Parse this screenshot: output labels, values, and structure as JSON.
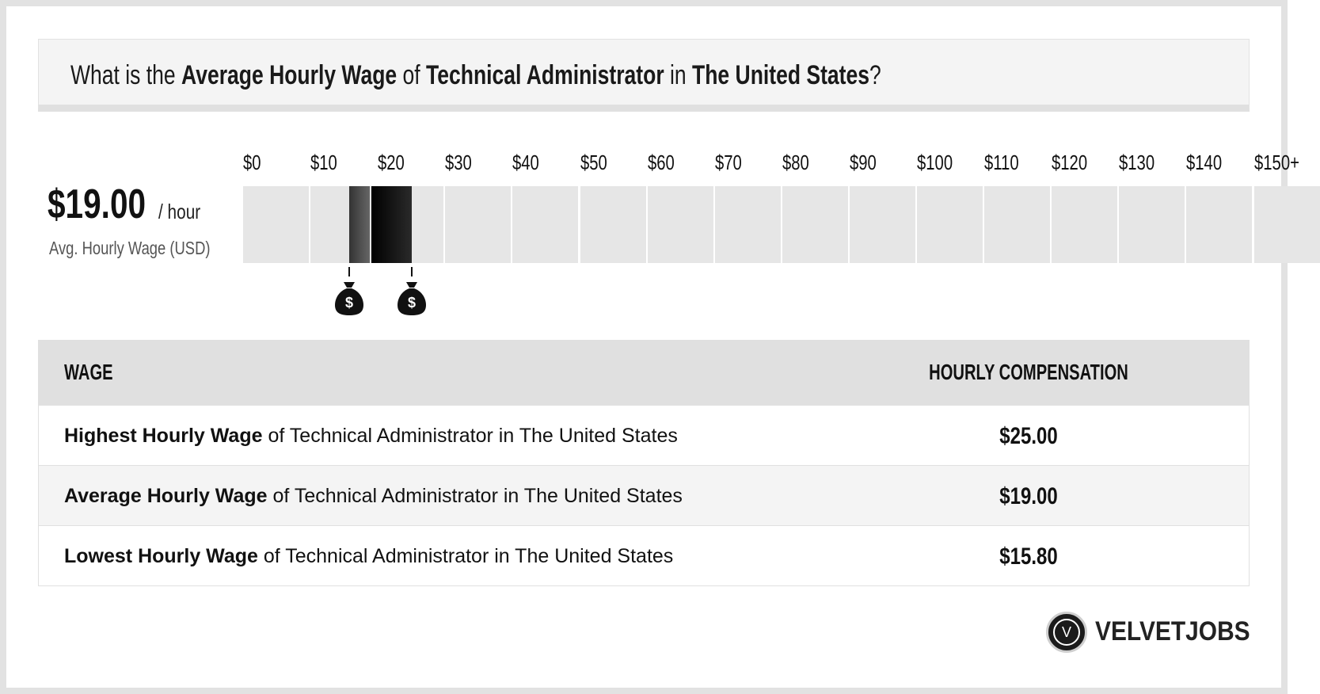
{
  "header": {
    "title_parts": [
      {
        "text": "What is the ",
        "bold": false
      },
      {
        "text": "Average Hourly Wage",
        "bold": true
      },
      {
        "text": " of ",
        "bold": false
      },
      {
        "text": "Technical Administrator",
        "bold": true
      },
      {
        "text": " in ",
        "bold": false
      },
      {
        "text": "The United States",
        "bold": true
      },
      {
        "text": "?",
        "bold": false
      }
    ]
  },
  "summary": {
    "value": "$19.00",
    "unit": "/ hour",
    "label": "Avg. Hourly Wage (USD)"
  },
  "chart_data": {
    "type": "bar",
    "title": "",
    "x_ticks": [
      "$0",
      "$10",
      "$20",
      "$30",
      "$40",
      "$50",
      "$60",
      "$70",
      "$80",
      "$90",
      "$100",
      "$110",
      "$120",
      "$130",
      "$140",
      "$150+"
    ],
    "x_range": [
      0,
      160
    ],
    "x_unit": "USD per hour",
    "range": {
      "low": 15.8,
      "average": 19.0,
      "high": 25.0
    },
    "markers": [
      15.8,
      25.0
    ],
    "colors": {
      "empty": "#e6e6e6",
      "low_segment": "#4a4a4a",
      "high_segment": "#111111"
    }
  },
  "table": {
    "headers": {
      "wage": "WAGE",
      "compensation": "HOURLY COMPENSATION"
    },
    "rows": [
      {
        "bold": "Highest Hourly Wage",
        "rest": " of Technical Administrator in The United States",
        "value": "$25.00"
      },
      {
        "bold": "Average Hourly Wage",
        "rest": " of Technical Administrator in The United States",
        "value": "$19.00"
      },
      {
        "bold": "Lowest Hourly Wage",
        "rest": " of Technical Administrator in The United States",
        "value": "$15.80"
      }
    ]
  },
  "branding": {
    "logo_letter": "V",
    "name": "VELVETJOBS"
  }
}
